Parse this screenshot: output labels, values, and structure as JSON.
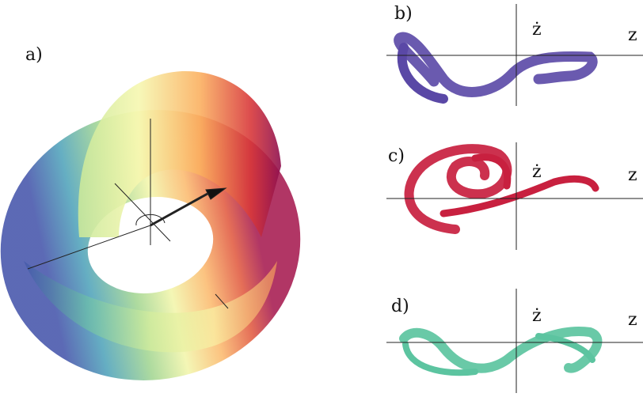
{
  "panels": [
    {
      "label": "a)"
    },
    {
      "label": "b)",
      "y_label": "ż",
      "x_label": "z"
    },
    {
      "label": "c)",
      "y_label": "ż",
      "x_label": "z"
    },
    {
      "label": "d)",
      "y_label": "ż",
      "x_label": "z"
    }
  ]
}
